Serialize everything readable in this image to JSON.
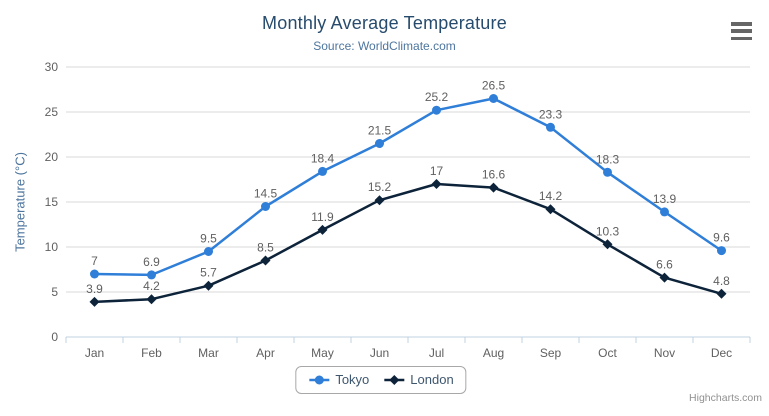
{
  "chart_data": {
    "type": "line",
    "title": "Monthly Average Temperature",
    "subtitle": "Source: WorldClimate.com",
    "xlabel": "",
    "ylabel": "Temperature (°C)",
    "categories": [
      "Jan",
      "Feb",
      "Mar",
      "Apr",
      "May",
      "Jun",
      "Jul",
      "Aug",
      "Sep",
      "Oct",
      "Nov",
      "Dec"
    ],
    "series": [
      {
        "name": "Tokyo",
        "color": "#2f7ed8",
        "marker": "circle",
        "values": [
          7,
          6.9,
          9.5,
          14.5,
          18.4,
          21.5,
          25.2,
          26.5,
          23.3,
          18.3,
          13.9,
          9.6
        ]
      },
      {
        "name": "London",
        "color": "#0d233a",
        "marker": "diamond",
        "values": [
          3.9,
          4.2,
          5.7,
          8.5,
          11.9,
          15.2,
          17,
          16.6,
          14.2,
          10.3,
          6.6,
          4.8
        ]
      }
    ],
    "ylim": [
      0,
      30
    ],
    "ytick_interval": 5,
    "grid": true,
    "data_labels": true,
    "legend_position": "bottom"
  },
  "colors": {
    "title": "#274b6d",
    "subtitle": "#4d759e",
    "axis_title": "#4d759e",
    "tick_label": "#606060",
    "data_label": "#606060",
    "grid_line": "#d8d8d8",
    "axis_line": "#c0d0e0",
    "legend_text": "#3E576F",
    "menu_icon": "#666666",
    "credits": "#909090"
  },
  "icons": {
    "context_menu": "hamburger-icon"
  },
  "credits": {
    "label": "Highcharts.com"
  }
}
